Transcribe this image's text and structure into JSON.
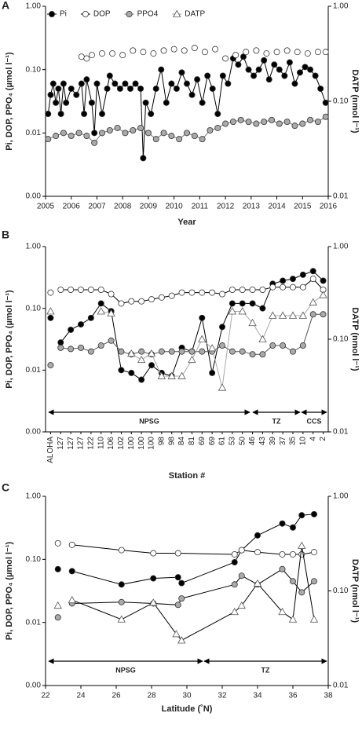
{
  "chart_data": [
    {
      "type": "line",
      "panel": "A",
      "xlabel": "Year",
      "ylabel": "Pi, DOP, PPO₄ (µmol l⁻¹)",
      "y2label": "DATP (nmol l⁻¹)",
      "log_y": true,
      "legend": true,
      "xlim": [
        2005,
        2016
      ],
      "xticks": [
        2005,
        2006,
        2007,
        2008,
        2009,
        2010,
        2011,
        2012,
        2013,
        2014,
        2015,
        2016
      ],
      "ylim": [
        0.001,
        1
      ],
      "yticks": [
        {
          "value": 0.001,
          "label": "0.00"
        },
        0.01,
        {
          "value": 0.1,
          "label": "0.10"
        },
        {
          "value": 1,
          "label": "1.00"
        }
      ],
      "y2lim": [
        0.01,
        1
      ],
      "y2ticks": [
        0.01,
        {
          "value": 0.1,
          "label": "0.10"
        },
        {
          "value": 1,
          "label": "1.00"
        }
      ],
      "series": [
        {
          "name": "Pi",
          "marker": "circle",
          "color": "#000000",
          "line_color": "#000000",
          "connected": true,
          "x": [
            2005.1,
            2005.2,
            2005.3,
            2005.4,
            2005.5,
            2005.6,
            2005.7,
            2005.8,
            2006.0,
            2006.2,
            2006.4,
            2006.5,
            2006.6,
            2006.8,
            2006.9,
            2007.0,
            2007.2,
            2007.4,
            2007.5,
            2007.7,
            2007.9,
            2008.1,
            2008.3,
            2008.5,
            2008.7,
            2008.8,
            2008.9,
            2009.1,
            2009.3,
            2009.5,
            2009.7,
            2009.9,
            2010.1,
            2010.3,
            2010.5,
            2010.7,
            2010.9,
            2011.1,
            2011.3,
            2011.5,
            2011.7,
            2011.9,
            2012.1,
            2012.3,
            2012.5,
            2012.7,
            2012.9,
            2013.1,
            2013.3,
            2013.5,
            2013.7,
            2013.9,
            2014.1,
            2014.3,
            2014.5,
            2014.7,
            2014.9,
            2015.1,
            2015.3,
            2015.5,
            2015.7,
            2015.9
          ],
          "values": [
            0.02,
            0.04,
            0.06,
            0.03,
            0.05,
            0.02,
            0.06,
            0.03,
            0.05,
            0.04,
            0.06,
            0.02,
            0.07,
            0.03,
            0.01,
            0.06,
            0.02,
            0.05,
            0.08,
            0.06,
            0.05,
            0.06,
            0.05,
            0.06,
            0.05,
            0.004,
            0.03,
            0.02,
            0.05,
            0.1,
            0.03,
            0.06,
            0.05,
            0.09,
            0.06,
            0.04,
            0.07,
            0.03,
            0.08,
            0.05,
            0.02,
            0.08,
            0.06,
            0.15,
            0.12,
            0.16,
            0.1,
            0.08,
            0.1,
            0.14,
            0.07,
            0.12,
            0.1,
            0.08,
            0.13,
            0.06,
            0.09,
            0.11,
            0.1,
            0.08,
            0.05,
            0.03
          ]
        },
        {
          "name": "DOP",
          "marker": "circle",
          "color": "#ffffff",
          "line_color": "#000000",
          "connected": false,
          "x": [
            2006.4,
            2006.6,
            2006.8,
            2007.2,
            2007.6,
            2008.0,
            2008.4,
            2008.8,
            2009.2,
            2009.6,
            2010.0,
            2010.4,
            2010.8,
            2011.2,
            2011.6,
            2012.0,
            2012.4,
            2012.8,
            2013.2,
            2013.6,
            2014.0,
            2014.4,
            2014.8,
            2015.2,
            2015.6,
            2015.9
          ],
          "values": [
            0.16,
            0.15,
            0.17,
            0.18,
            0.18,
            0.17,
            0.2,
            0.19,
            0.18,
            0.2,
            0.21,
            0.2,
            0.22,
            0.19,
            0.21,
            0.15,
            0.17,
            0.19,
            0.2,
            0.18,
            0.19,
            0.2,
            0.19,
            0.18,
            0.19,
            0.19
          ]
        },
        {
          "name": "PPO4",
          "marker": "circle",
          "color": "#aaaaaa",
          "line_color": "#777777",
          "connected": true,
          "x": [
            2005.1,
            2005.4,
            2005.7,
            2006.0,
            2006.3,
            2006.6,
            2006.9,
            2007.2,
            2007.5,
            2007.8,
            2008.1,
            2008.4,
            2008.7,
            2009.0,
            2009.3,
            2009.6,
            2009.9,
            2010.2,
            2010.5,
            2010.8,
            2011.1,
            2011.4,
            2011.7,
            2012.0,
            2012.3,
            2012.6,
            2012.9,
            2013.2,
            2013.5,
            2013.8,
            2014.1,
            2014.4,
            2014.7,
            2015.0,
            2015.3,
            2015.6,
            2015.9
          ],
          "values": [
            0.008,
            0.009,
            0.01,
            0.009,
            0.01,
            0.009,
            0.007,
            0.01,
            0.011,
            0.012,
            0.01,
            0.011,
            0.012,
            0.01,
            0.008,
            0.01,
            0.009,
            0.008,
            0.01,
            0.009,
            0.008,
            0.011,
            0.012,
            0.014,
            0.015,
            0.016,
            0.015,
            0.014,
            0.015,
            0.016,
            0.014,
            0.015,
            0.013,
            0.014,
            0.016,
            0.015,
            0.018
          ]
        },
        {
          "name": "DATP",
          "marker": "triangle",
          "color": "#ffffff",
          "line_color": "#999999",
          "connected": true,
          "axis": "y2",
          "x": [],
          "values": []
        }
      ]
    },
    {
      "type": "line",
      "panel": "B",
      "xlabel": "Station #",
      "ylabel": "Pi, DOP, PPO₄ (µmol l⁻¹)",
      "y2label": "DATP (nmol l⁻¹)",
      "log_y": true,
      "legend": false,
      "regions": [
        "NPSG",
        "TZ",
        "CCS"
      ],
      "categories": [
        "ALOHA",
        "127",
        "127",
        "127",
        "122",
        "110",
        "106",
        "102",
        "100",
        "100",
        "100",
        "98",
        "98",
        "84",
        "81",
        "69",
        "69",
        "61",
        "53",
        "50",
        "46",
        "43",
        "39",
        "37",
        "35",
        "10",
        "4",
        "2"
      ],
      "ylim": [
        0.001,
        1
      ],
      "yticks": [
        {
          "value": 0.001,
          "label": "0.00"
        },
        0.01,
        {
          "value": 0.1,
          "label": "0.10"
        },
        {
          "value": 1,
          "label": "1.00"
        }
      ],
      "y2lim": [
        0.01,
        1
      ],
      "y2ticks": [
        0.01,
        {
          "value": 0.1,
          "label": "0.10"
        },
        {
          "value": 1,
          "label": "1.00"
        }
      ],
      "series": [
        {
          "name": "Pi",
          "marker": "circle",
          "color": "#000000",
          "line_color": "#000000",
          "connected": true,
          "values": [
            0.07,
            0.028,
            0.045,
            0.055,
            0.07,
            0.12,
            0.09,
            0.01,
            0.009,
            0.007,
            0.012,
            0.009,
            0.008,
            0.023,
            0.02,
            0.07,
            0.009,
            0.05,
            0.12,
            0.12,
            0.12,
            0.1,
            0.25,
            0.28,
            0.3,
            0.35,
            0.4,
            0.28
          ]
        },
        {
          "name": "DOP",
          "marker": "circle",
          "color": "#ffffff",
          "line_color": "#000000",
          "connected": true,
          "values": [
            0.18,
            0.2,
            0.2,
            0.2,
            0.2,
            0.2,
            0.17,
            0.12,
            0.13,
            0.13,
            0.14,
            0.15,
            0.16,
            0.18,
            0.18,
            0.18,
            0.18,
            0.17,
            0.2,
            0.2,
            0.2,
            0.2,
            0.22,
            0.22,
            0.22,
            0.22,
            0.3,
            0.2
          ]
        },
        {
          "name": "PPO4",
          "marker": "circle",
          "color": "#aaaaaa",
          "line_color": "#555555",
          "connected": true,
          "values": [
            0.012,
            0.023,
            0.022,
            0.023,
            0.02,
            0.025,
            0.03,
            0.02,
            0.018,
            0.02,
            0.018,
            0.02,
            0.02,
            0.02,
            0.02,
            0.02,
            0.02,
            0.025,
            0.02,
            0.02,
            0.018,
            0.018,
            0.025,
            0.025,
            0.02,
            0.025,
            0.08,
            0.08
          ]
        },
        {
          "name": "DATP",
          "marker": "triangle",
          "color": "#ffffff",
          "line_color": "#aaaaaa",
          "connected": true,
          "axis": "y2",
          "values": [
            0.2,
            null,
            null,
            null,
            null,
            0.2,
            0.19,
            null,
            0.07,
            0.06,
            0.07,
            0.04,
            0.04,
            0.04,
            0.06,
            0.1,
            0.08,
            0.03,
            0.2,
            0.2,
            0.15,
            0.1,
            0.18,
            0.18,
            0.18,
            0.18,
            0.25,
            0.3
          ]
        }
      ]
    },
    {
      "type": "line",
      "panel": "C",
      "xlabel": "Latitude (˚N)",
      "ylabel": "Pi, DOP, PPO₄ (µmol l⁻¹)",
      "y2label": "DATP (nmol l⁻¹)",
      "log_y": true,
      "legend": false,
      "regions": [
        "NPSG",
        "TZ"
      ],
      "xlim": [
        22,
        38
      ],
      "xticks": [
        22,
        24,
        26,
        28,
        30,
        32,
        34,
        36,
        38
      ],
      "ylim": [
        0.001,
        1
      ],
      "yticks": [
        {
          "value": 0.001,
          "label": "0.00"
        },
        0.01,
        {
          "value": 0.1,
          "label": "0.10"
        },
        {
          "value": 1,
          "label": "1.00"
        }
      ],
      "y2lim": [
        0.01,
        1
      ],
      "y2ticks": [
        0.01,
        {
          "value": 0.1,
          "label": "0.10"
        },
        {
          "value": 1,
          "label": "1.00"
        }
      ],
      "series": [
        {
          "name": "Pi",
          "marker": "circle",
          "color": "#000000",
          "line_color": "#000000",
          "connected": true,
          "x": [
            22.7,
            23.5,
            26.3,
            28.1,
            29.5,
            29.7,
            32.7,
            33.1,
            34,
            35.4,
            36,
            36.5,
            37.2
          ],
          "values": [
            0.07,
            0.065,
            0.04,
            0.05,
            0.052,
            0.042,
            0.09,
            0.14,
            0.24,
            0.37,
            0.32,
            0.5,
            0.52
          ]
        },
        {
          "name": "DOP",
          "marker": "circle",
          "color": "#ffffff",
          "line_color": "#000000",
          "connected": true,
          "x": [
            22.7,
            23.5,
            26.3,
            28.1,
            29.5,
            32.7,
            33.1,
            34,
            35.4,
            36,
            36.5,
            37.2
          ],
          "values": [
            0.18,
            0.17,
            0.14,
            0.125,
            0.125,
            0.12,
            0.14,
            0.13,
            0.12,
            0.12,
            0.12,
            0.13
          ]
        },
        {
          "name": "PPO4",
          "marker": "circle",
          "color": "#aaaaaa",
          "line_color": "#000000",
          "connected": true,
          "x": [
            22.7,
            23.5,
            26.3,
            28.1,
            29.5,
            29.7,
            32.7,
            33.1,
            34,
            35.4,
            36,
            36.5,
            37.2
          ],
          "values": [
            0.012,
            0.02,
            0.021,
            0.02,
            0.019,
            0.024,
            0.04,
            0.055,
            0.04,
            0.07,
            0.045,
            0.03,
            0.045
          ]
        },
        {
          "name": "DATP",
          "marker": "triangle",
          "color": "#ffffff",
          "line_color": "#000000",
          "connected": true,
          "axis": "y2",
          "x": [
            22.7,
            23.5,
            26.3,
            28.1,
            29.4,
            29.7,
            32.7,
            33.1,
            34,
            35.4,
            36,
            36.5,
            37.2
          ],
          "values": [
            0.07,
            0.08,
            0.05,
            0.075,
            0.035,
            0.03,
            0.06,
            0.07,
            0.12,
            0.06,
            0.05,
            0.3,
            0.05
          ]
        }
      ]
    }
  ]
}
